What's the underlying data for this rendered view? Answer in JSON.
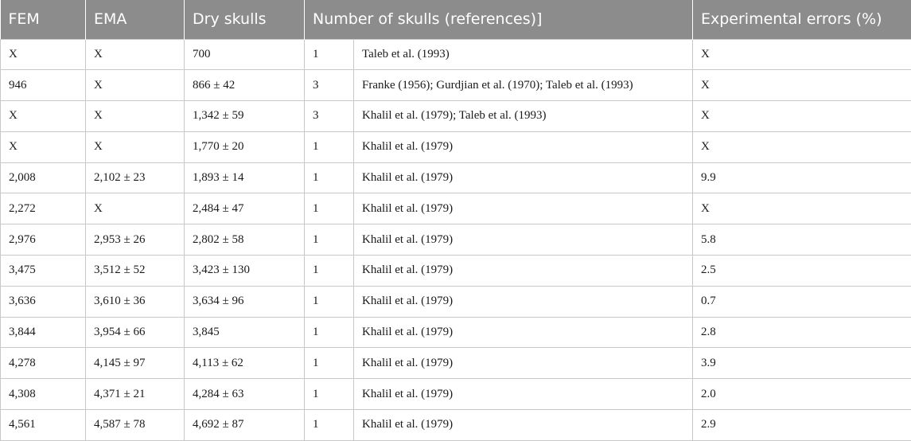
{
  "headers": {
    "fem": "FEM",
    "ema": "EMA",
    "dry": "Dry skulls",
    "count": "Number of skulls (references)]",
    "err": "Experimental errors (%)"
  },
  "rows": [
    {
      "fem": "X",
      "ema": "X",
      "dry": "700",
      "n": "1",
      "refs": "Taleb et al. (1993)",
      "err": "X"
    },
    {
      "fem": "946",
      "ema": "X",
      "dry": "866 ± 42",
      "n": "3",
      "refs": "Franke (1956); Gurdjian et al. (1970); Taleb et al. (1993)",
      "err": "X"
    },
    {
      "fem": "X",
      "ema": "X",
      "dry": "1,342 ± 59",
      "n": "3",
      "refs": "Khalil et al. (1979); Taleb et al. (1993)",
      "err": "X"
    },
    {
      "fem": "X",
      "ema": "X",
      "dry": "1,770 ± 20",
      "n": "1",
      "refs": "Khalil et al. (1979)",
      "err": "X"
    },
    {
      "fem": "2,008",
      "ema": "2,102 ± 23",
      "dry": "1,893 ± 14",
      "n": "1",
      "refs": "Khalil et al. (1979)",
      "err": "9.9"
    },
    {
      "fem": "2,272",
      "ema": "X",
      "dry": "2,484 ± 47",
      "n": "1",
      "refs": "Khalil et al. (1979)",
      "err": "X"
    },
    {
      "fem": "2,976",
      "ema": "2,953 ± 26",
      "dry": "2,802 ± 58",
      "n": "1",
      "refs": "Khalil et al. (1979)",
      "err": "5.8"
    },
    {
      "fem": "3,475",
      "ema": "3,512 ± 52",
      "dry": "3,423 ± 130",
      "n": "1",
      "refs": "Khalil et al. (1979)",
      "err": "2.5"
    },
    {
      "fem": "3,636",
      "ema": "3,610 ± 36",
      "dry": "3,634 ± 96",
      "n": "1",
      "refs": "Khalil et al. (1979)",
      "err": "0.7"
    },
    {
      "fem": "3,844",
      "ema": "3,954 ± 66",
      "dry": "3,845",
      "n": "1",
      "refs": "Khalil et al. (1979)",
      "err": "2.8"
    },
    {
      "fem": "4,278",
      "ema": "4,145 ± 97",
      "dry": "4,113 ± 62",
      "n": "1",
      "refs": "Khalil et al. (1979)",
      "err": "3.9"
    },
    {
      "fem": "4,308",
      "ema": "4,371 ± 21",
      "dry": "4,284 ± 63",
      "n": "1",
      "refs": "Khalil et al. (1979)",
      "err": "2.0"
    },
    {
      "fem": "4,561",
      "ema": "4,587 ± 78",
      "dry": "4,692 ± 87",
      "n": "1",
      "refs": "Khalil et al. (1979)",
      "err": "2.9"
    }
  ]
}
